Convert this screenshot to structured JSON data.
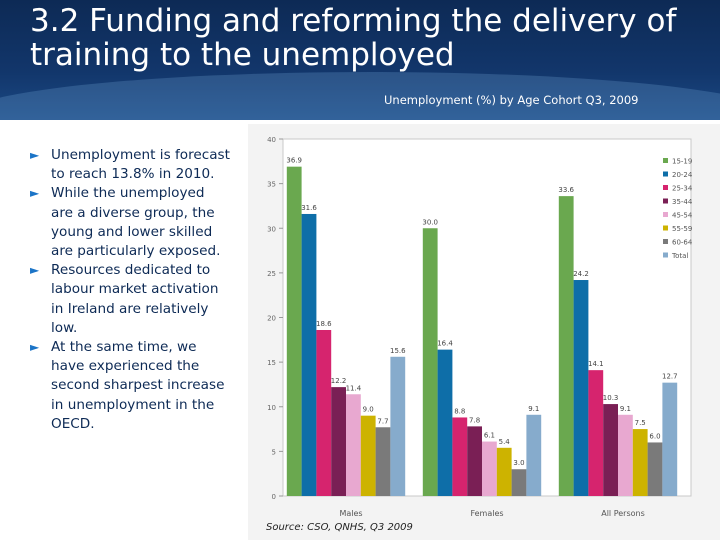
{
  "slide": {
    "title": "3.2 Funding and reforming the delivery of training to the unemployed",
    "bullets": [
      "Unemployment is forecast to reach 13.8% in 2010.",
      "While the unemployed are a diverse group, the young and lower skilled are particularly exposed.",
      "Resources dedicated to labour market activation in Ireland are relatively low.",
      "At the same time, we have experienced the second sharpest increase in unemployment in the OECD."
    ],
    "source": "Source: CSO, QNHS, Q3 2009"
  },
  "chart_data": {
    "type": "bar",
    "title": "Unemployment (%) by Age Cohort Q3, 2009",
    "categories": [
      "Males",
      "Females",
      "All Persons"
    ],
    "ylim": [
      0,
      40
    ],
    "yticks": [
      0,
      5,
      10,
      15,
      20,
      25,
      30,
      35,
      40
    ],
    "legend_position": "right",
    "series": [
      {
        "name": "15-19",
        "color": "#6aa84f",
        "values": [
          36.9,
          30.0,
          33.6
        ],
        "labels": [
          "36.9",
          "30.0",
          "33.6"
        ]
      },
      {
        "name": "20-24",
        "color": "#0e6ea8",
        "values": [
          31.6,
          16.4,
          24.2
        ],
        "labels": [
          "31.6",
          "16.4",
          "24.2"
        ]
      },
      {
        "name": "25-34",
        "color": "#d6246e",
        "values": [
          18.6,
          8.8,
          14.1
        ],
        "labels": [
          "18.6",
          "8.8",
          "14.1"
        ]
      },
      {
        "name": "35-44",
        "color": "#7a1f55",
        "values": [
          12.2,
          7.8,
          10.3
        ],
        "labels": [
          "12.2",
          "7.8",
          "10.3"
        ]
      },
      {
        "name": "45-54",
        "color": "#e8a8d0",
        "values": [
          11.4,
          6.1,
          9.1
        ],
        "labels": [
          "11.4",
          "6.1",
          "9.1"
        ]
      },
      {
        "name": "55-59",
        "color": "#cdb300",
        "values": [
          9.0,
          5.4,
          7.5
        ],
        "labels": [
          "9.0",
          "5.4",
          "7.5"
        ]
      },
      {
        "name": "60-64",
        "color": "#7a7a7a",
        "values": [
          7.7,
          3.0,
          6.0
        ],
        "labels": [
          "7.7",
          "3.0",
          "6.0"
        ]
      },
      {
        "name": "Total",
        "color": "#86abcc",
        "values": [
          15.6,
          9.1,
          12.7
        ],
        "labels": [
          "15.6",
          "9.1",
          "12.7"
        ]
      }
    ]
  }
}
